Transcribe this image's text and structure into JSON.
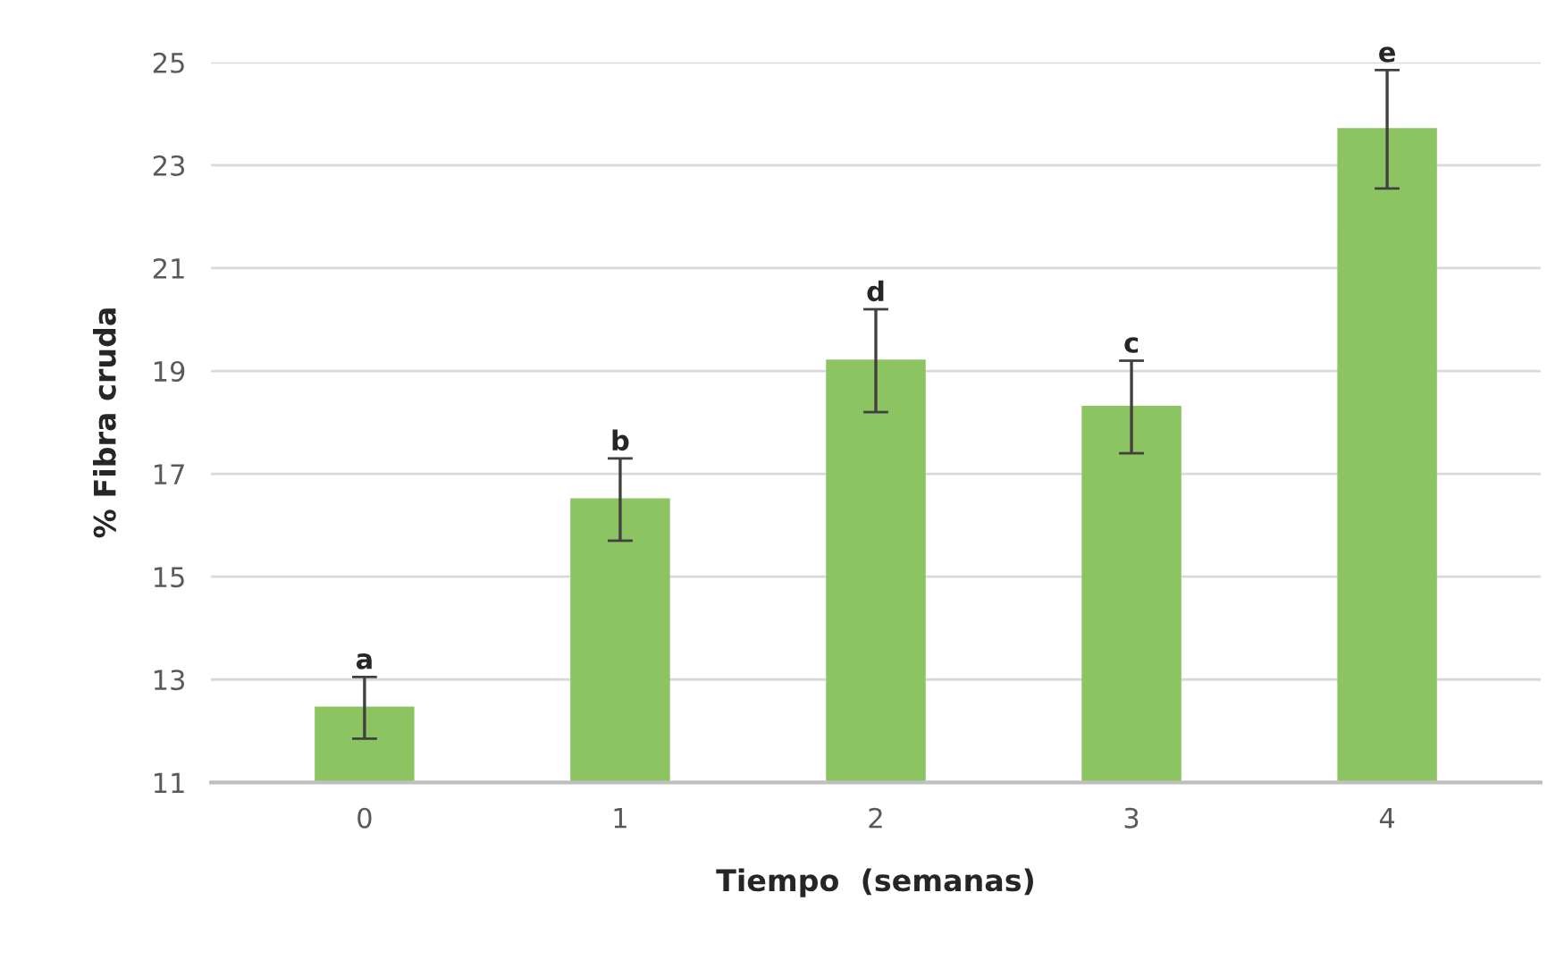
{
  "chart_data": {
    "type": "bar",
    "xlabel": "Tiempo  (semanas)",
    "ylabel": "% Fibra cruda",
    "categories": [
      "0",
      "1",
      "2",
      "3",
      "4"
    ],
    "values": [
      12.45,
      16.5,
      19.2,
      18.3,
      23.7
    ],
    "errors": [
      0.6,
      0.8,
      1.0,
      0.9,
      1.15
    ],
    "color": "#8cc462",
    "ylim": [
      11,
      25
    ],
    "yticks": [
      11,
      13,
      15,
      17,
      19,
      21,
      23,
      25
    ],
    "grid": "y",
    "annotations": [
      {
        "text": "a",
        "x": "0",
        "y": 13.05
      },
      {
        "text": "b",
        "x": "1",
        "y": 17.3
      },
      {
        "text": "d",
        "x": "2",
        "y": 20.2
      },
      {
        "text": "c",
        "x": "3",
        "y": 19.2
      },
      {
        "text": "e",
        "x": "4",
        "y": 24.85
      }
    ]
  }
}
